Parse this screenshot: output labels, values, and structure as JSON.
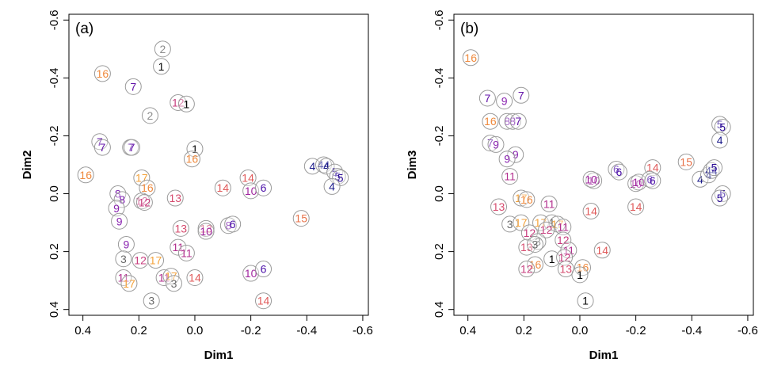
{
  "chart_data": [
    {
      "type": "scatter",
      "panel_label": "(a)",
      "xlabel": "Dim1",
      "ylabel": "Dim2",
      "xlim": [
        0.45,
        -0.62
      ],
      "ylim": [
        -0.62,
        0.42
      ],
      "x_ticks": [
        0.4,
        0.2,
        0.0,
        -0.2,
        -0.4,
        -0.6
      ],
      "y_ticks": [
        -0.6,
        -0.4,
        -0.2,
        0.0,
        0.2,
        0.4
      ],
      "x_tick_labels": [
        "0.4",
        "0.2",
        "0.0",
        "-0.2",
        "-0.4",
        "-0.6"
      ],
      "y_tick_labels": [
        "-0.6",
        "-0.4",
        "-0.2",
        "0.0",
        "0.2",
        "0.4"
      ],
      "grid": false,
      "points": [
        {
          "label": "2",
          "x": 0.115,
          "y": -0.5
        },
        {
          "label": "1",
          "x": 0.12,
          "y": -0.44
        },
        {
          "label": "16",
          "x": 0.33,
          "y": -0.415
        },
        {
          "label": "7",
          "x": 0.22,
          "y": -0.37
        },
        {
          "label": "12",
          "x": 0.06,
          "y": -0.315
        },
        {
          "label": "1",
          "x": 0.03,
          "y": -0.31
        },
        {
          "label": "2",
          "x": 0.16,
          "y": -0.27
        },
        {
          "label": "7",
          "x": 0.34,
          "y": -0.18
        },
        {
          "label": "7",
          "x": 0.33,
          "y": -0.16
        },
        {
          "label": "7",
          "x": 0.23,
          "y": -0.16
        },
        {
          "label": "7",
          "x": 0.225,
          "y": -0.16
        },
        {
          "label": "1",
          "x": 0.0,
          "y": -0.155
        },
        {
          "label": "16",
          "x": 0.01,
          "y": -0.12
        },
        {
          "label": "16",
          "x": 0.39,
          "y": -0.065
        },
        {
          "label": "17",
          "x": 0.19,
          "y": -0.055
        },
        {
          "label": "16",
          "x": 0.17,
          "y": -0.02
        },
        {
          "label": "14",
          "x": -0.1,
          "y": -0.02
        },
        {
          "label": "14",
          "x": -0.19,
          "y": -0.055
        },
        {
          "label": "10",
          "x": -0.2,
          "y": -0.01
        },
        {
          "label": "6",
          "x": -0.245,
          "y": -0.02
        },
        {
          "label": "13",
          "x": 0.07,
          "y": 0.015
        },
        {
          "label": "8",
          "x": 0.275,
          "y": 0.0
        },
        {
          "label": "8",
          "x": 0.26,
          "y": 0.02
        },
        {
          "label": "12",
          "x": 0.19,
          "y": 0.025
        },
        {
          "label": "12",
          "x": 0.18,
          "y": 0.03
        },
        {
          "label": "9",
          "x": 0.28,
          "y": 0.05
        },
        {
          "label": "9",
          "x": 0.27,
          "y": 0.095
        },
        {
          "label": "4",
          "x": -0.42,
          "y": -0.095
        },
        {
          "label": "44",
          "x": -0.46,
          "y": -0.1
        },
        {
          "label": "4",
          "x": -0.47,
          "y": -0.095
        },
        {
          "label": "5",
          "x": -0.5,
          "y": -0.075
        },
        {
          "label": "5",
          "x": -0.51,
          "y": -0.06
        },
        {
          "label": "5",
          "x": -0.52,
          "y": -0.055
        },
        {
          "label": "4",
          "x": -0.49,
          "y": -0.025
        },
        {
          "label": "13",
          "x": 0.05,
          "y": 0.12
        },
        {
          "label": "13",
          "x": -0.04,
          "y": 0.12
        },
        {
          "label": "10",
          "x": -0.04,
          "y": 0.13
        },
        {
          "label": "8",
          "x": -0.12,
          "y": 0.11
        },
        {
          "label": "6",
          "x": -0.135,
          "y": 0.105
        },
        {
          "label": "15",
          "x": -0.38,
          "y": 0.085
        },
        {
          "label": "9",
          "x": 0.245,
          "y": 0.175
        },
        {
          "label": "11",
          "x": 0.06,
          "y": 0.185
        },
        {
          "label": "11",
          "x": 0.03,
          "y": 0.205
        },
        {
          "label": "3",
          "x": 0.255,
          "y": 0.225
        },
        {
          "label": "12",
          "x": 0.195,
          "y": 0.23
        },
        {
          "label": "17",
          "x": 0.14,
          "y": 0.23
        },
        {
          "label": "11",
          "x": 0.255,
          "y": 0.29
        },
        {
          "label": "17",
          "x": 0.235,
          "y": 0.31
        },
        {
          "label": "11",
          "x": 0.11,
          "y": 0.29
        },
        {
          "label": "17",
          "x": 0.085,
          "y": 0.285
        },
        {
          "label": "3",
          "x": 0.075,
          "y": 0.31
        },
        {
          "label": "14",
          "x": 0.0,
          "y": 0.29
        },
        {
          "label": "10",
          "x": -0.2,
          "y": 0.275
        },
        {
          "label": "6",
          "x": -0.245,
          "y": 0.26
        },
        {
          "label": "3",
          "x": 0.155,
          "y": 0.37
        },
        {
          "label": "14",
          "x": -0.245,
          "y": 0.37
        }
      ]
    },
    {
      "type": "scatter",
      "panel_label": "(b)",
      "xlabel": "Dim1",
      "ylabel": "Dim3",
      "xlim": [
        0.45,
        -0.62
      ],
      "ylim": [
        -0.62,
        0.42
      ],
      "x_ticks": [
        0.4,
        0.2,
        0.0,
        -0.2,
        -0.4,
        -0.6
      ],
      "y_ticks": [
        -0.6,
        -0.4,
        -0.2,
        0.0,
        0.2,
        0.4
      ],
      "x_tick_labels": [
        "0.4",
        "0.2",
        "0.0",
        "-0.2",
        "-0.4",
        "-0.6"
      ],
      "y_tick_labels": [
        "-0.6",
        "-0.4",
        "-0.2",
        "0.0",
        "0.2",
        "0.4"
      ],
      "grid": false,
      "points": [
        {
          "label": "16",
          "x": 0.39,
          "y": -0.47
        },
        {
          "label": "7",
          "x": 0.33,
          "y": -0.33
        },
        {
          "label": "9",
          "x": 0.27,
          "y": -0.32
        },
        {
          "label": "7",
          "x": 0.21,
          "y": -0.34
        },
        {
          "label": "16",
          "x": 0.32,
          "y": -0.25
        },
        {
          "label": "8",
          "x": 0.26,
          "y": -0.25
        },
        {
          "label": "8",
          "x": 0.24,
          "y": -0.25
        },
        {
          "label": "7",
          "x": 0.22,
          "y": -0.25
        },
        {
          "label": "7",
          "x": 0.32,
          "y": -0.175
        },
        {
          "label": "9",
          "x": 0.3,
          "y": -0.17
        },
        {
          "label": "9",
          "x": 0.23,
          "y": -0.135
        },
        {
          "label": "9",
          "x": 0.26,
          "y": -0.12
        },
        {
          "label": "11",
          "x": 0.25,
          "y": -0.06
        },
        {
          "label": "17",
          "x": 0.21,
          "y": 0.015
        },
        {
          "label": "16",
          "x": 0.19,
          "y": 0.02
        },
        {
          "label": "11",
          "x": 0.11,
          "y": 0.035
        },
        {
          "label": "13",
          "x": 0.29,
          "y": 0.045
        },
        {
          "label": "14",
          "x": -0.04,
          "y": 0.06
        },
        {
          "label": "10",
          "x": -0.05,
          "y": -0.045
        },
        {
          "label": "10",
          "x": -0.04,
          "y": -0.05
        },
        {
          "label": "6",
          "x": -0.13,
          "y": -0.085
        },
        {
          "label": "6",
          "x": -0.14,
          "y": -0.075
        },
        {
          "label": "14",
          "x": -0.26,
          "y": -0.09
        },
        {
          "label": "10",
          "x": -0.2,
          "y": -0.035
        },
        {
          "label": "10",
          "x": -0.21,
          "y": -0.04
        },
        {
          "label": "6",
          "x": -0.25,
          "y": -0.05
        },
        {
          "label": "6",
          "x": -0.26,
          "y": -0.045
        },
        {
          "label": "14",
          "x": -0.2,
          "y": 0.045
        },
        {
          "label": "15",
          "x": -0.38,
          "y": -0.11
        },
        {
          "label": "4",
          "x": -0.43,
          "y": -0.05
        },
        {
          "label": "4",
          "x": -0.46,
          "y": -0.065
        },
        {
          "label": "44",
          "x": -0.47,
          "y": -0.08
        },
        {
          "label": "5",
          "x": -0.48,
          "y": -0.09
        },
        {
          "label": "5",
          "x": -0.5,
          "y": -0.24
        },
        {
          "label": "5",
          "x": -0.51,
          "y": -0.23
        },
        {
          "label": "4",
          "x": -0.5,
          "y": -0.185
        },
        {
          "label": "5",
          "x": -0.51,
          "y": 0.0
        },
        {
          "label": "5",
          "x": -0.5,
          "y": 0.015
        },
        {
          "label": "3",
          "x": 0.25,
          "y": 0.105
        },
        {
          "label": "17",
          "x": 0.21,
          "y": 0.1
        },
        {
          "label": "17",
          "x": 0.14,
          "y": 0.1
        },
        {
          "label": "1",
          "x": 0.1,
          "y": 0.1
        },
        {
          "label": "17",
          "x": 0.08,
          "y": 0.105
        },
        {
          "label": "11",
          "x": 0.06,
          "y": 0.115
        },
        {
          "label": "12",
          "x": 0.18,
          "y": 0.135
        },
        {
          "label": "12",
          "x": 0.12,
          "y": 0.125
        },
        {
          "label": "12",
          "x": 0.06,
          "y": 0.16
        },
        {
          "label": "3",
          "x": 0.15,
          "y": 0.165
        },
        {
          "label": "13",
          "x": 0.19,
          "y": 0.185
        },
        {
          "label": "3",
          "x": 0.16,
          "y": 0.175
        },
        {
          "label": "11",
          "x": 0.04,
          "y": 0.195
        },
        {
          "label": "14",
          "x": -0.08,
          "y": 0.195
        },
        {
          "label": "1",
          "x": 0.1,
          "y": 0.225
        },
        {
          "label": "12",
          "x": 0.055,
          "y": 0.22
        },
        {
          "label": "16",
          "x": 0.16,
          "y": 0.245
        },
        {
          "label": "12",
          "x": 0.19,
          "y": 0.26
        },
        {
          "label": "13",
          "x": 0.05,
          "y": 0.26
        },
        {
          "label": "16",
          "x": -0.01,
          "y": 0.255
        },
        {
          "label": "1",
          "x": 0.0,
          "y": 0.28
        },
        {
          "label": "1",
          "x": -0.02,
          "y": 0.37
        }
      ]
    }
  ],
  "colors": {
    "1": "#000000",
    "2": "#8c8c8c",
    "3": "#696969",
    "4": "#1b1b8a",
    "5": "#2a0a96",
    "6": "#4a0fa8",
    "7": "#6212a8",
    "8": "#7a19ae",
    "9": "#8a24b0",
    "10": "#a0259e",
    "11": "#b3308f",
    "12": "#c73d7e",
    "13": "#d64b6e",
    "14": "#e05a5a",
    "15": "#e8734a",
    "16": "#ef8a3e",
    "17": "#f4a23a",
    "44": "#1b1b8a",
    "circle_stroke": "#9a9a9a"
  }
}
